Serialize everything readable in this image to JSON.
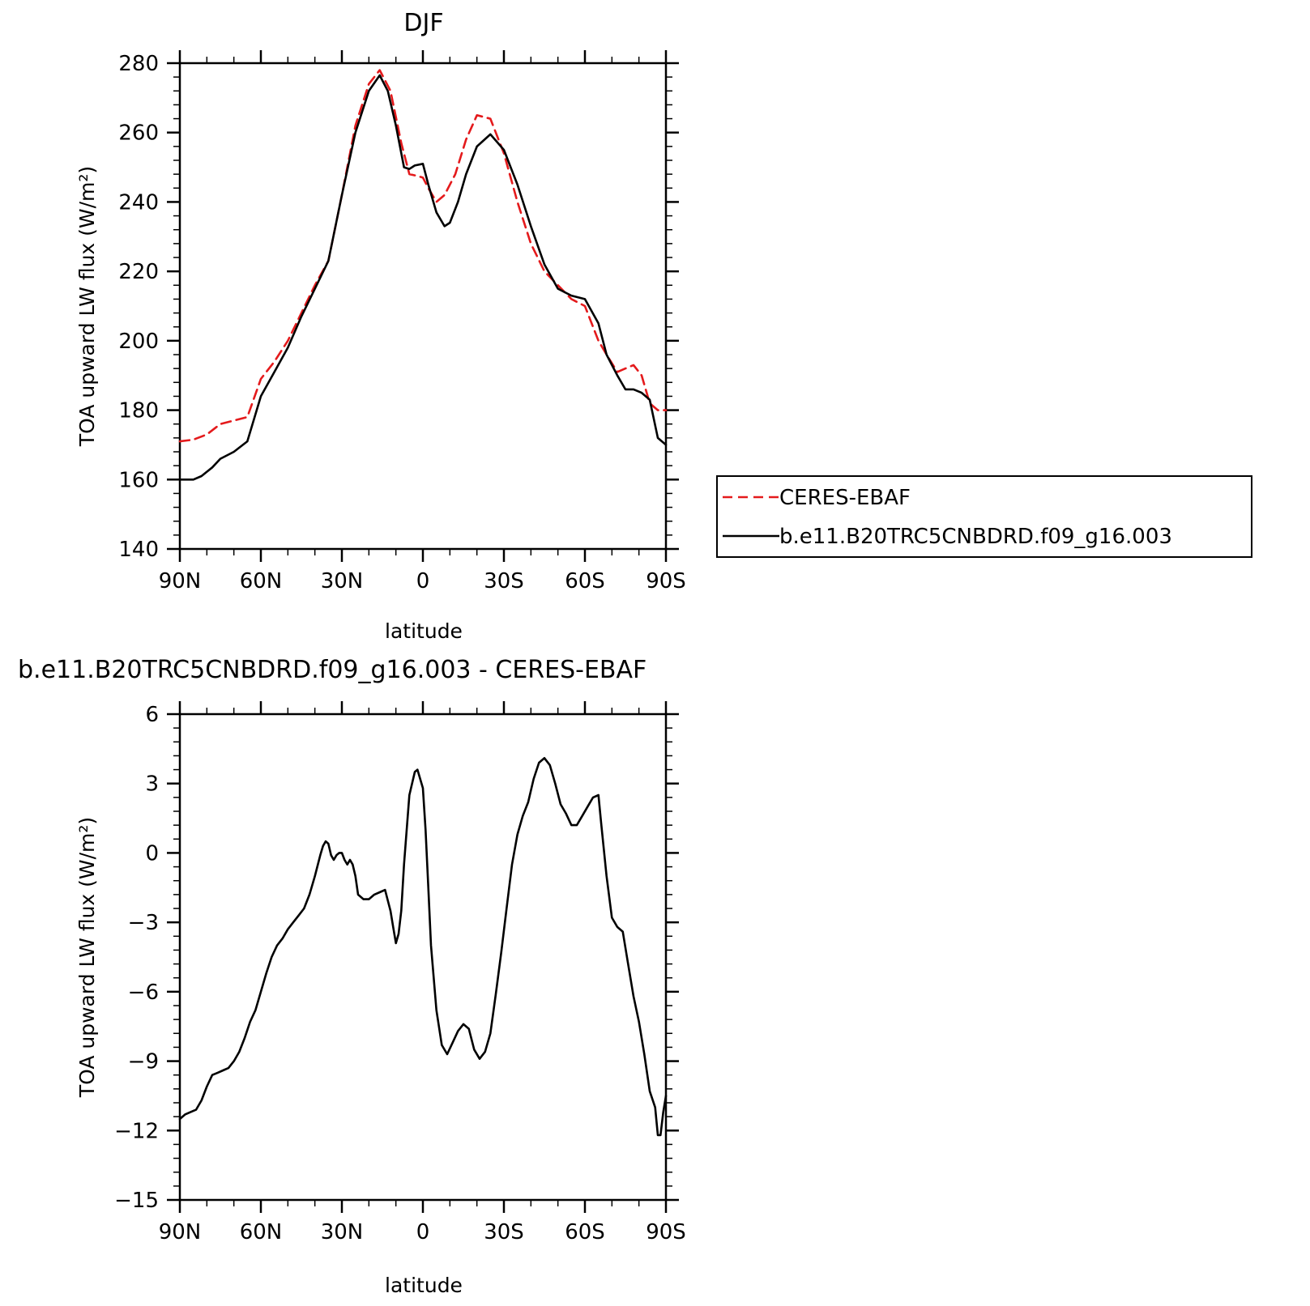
{
  "chart_data": [
    {
      "type": "line",
      "title": "DJF",
      "xlabel": "latitude",
      "ylabel": "TOA upward LW flux (W/m²)",
      "ylim": [
        140,
        280
      ],
      "yticks": [
        140,
        160,
        180,
        200,
        220,
        240,
        260,
        280
      ],
      "ytick_labels": [
        "140",
        "160",
        "180",
        "200",
        "220",
        "240",
        "260",
        "280"
      ],
      "xlim": [
        90,
        -90
      ],
      "xticks": [
        90,
        60,
        30,
        0,
        -30,
        -60,
        -90
      ],
      "xtick_labels": [
        "90N",
        "60N",
        "30N",
        "0",
        "30S",
        "60S",
        "90S"
      ],
      "legend_position": "right",
      "series": [
        {
          "name": "CERES-EBAF",
          "color": "#e41a1c",
          "dash": "dashed",
          "x": [
            90,
            85,
            80,
            75,
            70,
            65,
            60,
            55,
            50,
            45,
            40,
            35,
            30,
            25,
            20,
            16,
            12,
            8,
            5,
            2,
            0,
            -2,
            -5,
            -8,
            -12,
            -16,
            -20,
            -25,
            -30,
            -35,
            -40,
            -45,
            -50,
            -55,
            -60,
            -65,
            -68,
            -72,
            -75,
            -78,
            -81,
            -84,
            -87,
            -90
          ],
          "values": [
            171,
            171.5,
            173,
            176,
            177,
            178,
            189,
            194,
            200,
            208,
            216,
            223,
            242,
            262,
            274,
            278,
            272,
            257,
            248,
            247.5,
            247,
            244,
            240,
            242,
            248,
            258,
            265,
            264,
            254,
            240,
            228,
            220,
            216,
            212,
            210,
            200,
            196,
            191,
            192,
            193,
            190,
            182,
            180,
            180
          ]
        },
        {
          "name": "b.e11.B20TRC5CNBDRD.f09_g16.003",
          "color": "#000000",
          "dash": "solid",
          "x": [
            90,
            85,
            82,
            78,
            75,
            70,
            65,
            60,
            55,
            50,
            45,
            40,
            35,
            30,
            25,
            20,
            16,
            13,
            10,
            7,
            5,
            3,
            0,
            -2,
            -5,
            -8,
            -10,
            -13,
            -16,
            -20,
            -25,
            -30,
            -35,
            -40,
            -45,
            -50,
            -55,
            -60,
            -65,
            -68,
            -72,
            -75,
            -78,
            -81,
            -84,
            -87,
            -90
          ],
          "values": [
            160,
            160,
            161,
            163.5,
            166,
            168,
            171,
            184,
            191,
            198,
            207,
            215,
            223,
            242,
            260,
            272,
            276.5,
            272,
            262,
            250,
            249.5,
            250.5,
            251,
            245,
            237,
            233,
            234,
            240,
            248,
            256,
            259.5,
            255,
            245,
            233,
            222,
            215,
            213,
            212,
            205,
            196,
            190,
            186,
            186,
            185,
            183,
            172,
            170
          ]
        }
      ]
    },
    {
      "type": "line",
      "title": "b.e11.B20TRC5CNBDRD.f09_g16.003 - CERES-EBAF",
      "xlabel": "latitude",
      "ylabel": "TOA upward LW flux (W/m²)",
      "ylim": [
        -15,
        6
      ],
      "yticks": [
        -15,
        -12,
        -9,
        -6,
        -3,
        0,
        3,
        6
      ],
      "ytick_labels": [
        "−15",
        "−12",
        "−9",
        "−6",
        "−3",
        "0",
        "3",
        "6"
      ],
      "xlim": [
        90,
        -90
      ],
      "xticks": [
        90,
        60,
        30,
        0,
        -30,
        -60,
        -90
      ],
      "xtick_labels": [
        "90N",
        "60N",
        "30N",
        "0",
        "30S",
        "60S",
        "90S"
      ],
      "series": [
        {
          "color": "#000000",
          "dash": "solid",
          "x": [
            90,
            88,
            86,
            84,
            82,
            80,
            78,
            76,
            74,
            72,
            70,
            68,
            66,
            64,
            62,
            60,
            58,
            56,
            54,
            52,
            50,
            48,
            46,
            44,
            42,
            40,
            38,
            37,
            36,
            35,
            34,
            33,
            32,
            31,
            30,
            29,
            28,
            27,
            26,
            25,
            24,
            22,
            20,
            18,
            16,
            14,
            12,
            11,
            10,
            9,
            8,
            7,
            5,
            3,
            2,
            0,
            -1,
            -2,
            -3,
            -5,
            -7,
            -9,
            -11,
            -13,
            -15,
            -17,
            -19,
            -21,
            -23,
            -25,
            -27,
            -29,
            -31,
            -33,
            -35,
            -37,
            -39,
            -41,
            -43,
            -45,
            -47,
            -49,
            -51,
            -53,
            -55,
            -57,
            -59,
            -61,
            -63,
            -65,
            -66,
            -68,
            -70,
            -72,
            -74,
            -76,
            -78,
            -80,
            -82,
            -84,
            -86,
            -87,
            -88,
            -89,
            -90
          ],
          "values": [
            -11.5,
            -11.3,
            -11.2,
            -11.1,
            -10.7,
            -10.1,
            -9.6,
            -9.5,
            -9.4,
            -9.3,
            -9.0,
            -8.6,
            -8.0,
            -7.3,
            -6.8,
            -6.0,
            -5.2,
            -4.5,
            -4.0,
            -3.7,
            -3.3,
            -3.0,
            -2.7,
            -2.4,
            -1.8,
            -1.0,
            -0.1,
            0.3,
            0.5,
            0.4,
            -0.1,
            -0.3,
            -0.1,
            0.0,
            0.0,
            -0.3,
            -0.5,
            -0.3,
            -0.5,
            -1.0,
            -1.8,
            -2.0,
            -2.0,
            -1.8,
            -1.7,
            -1.6,
            -2.5,
            -3.2,
            -3.9,
            -3.5,
            -2.5,
            -0.5,
            2.5,
            3.5,
            3.6,
            2.8,
            1.0,
            -1.5,
            -4.0,
            -6.8,
            -8.3,
            -8.7,
            -8.2,
            -7.7,
            -7.4,
            -7.6,
            -8.5,
            -8.9,
            -8.6,
            -7.8,
            -6.1,
            -4.3,
            -2.4,
            -0.5,
            0.8,
            1.6,
            2.2,
            3.2,
            3.9,
            4.1,
            3.8,
            3.0,
            2.1,
            1.7,
            1.2,
            1.2,
            1.6,
            2.0,
            2.4,
            2.5,
            1.3,
            -1.0,
            -2.8,
            -3.2,
            -3.4,
            -4.8,
            -6.2,
            -7.3,
            -8.7,
            -10.3,
            -11.0,
            -12.2,
            -12.2,
            -11.2,
            -10.5
          ]
        }
      ]
    }
  ]
}
